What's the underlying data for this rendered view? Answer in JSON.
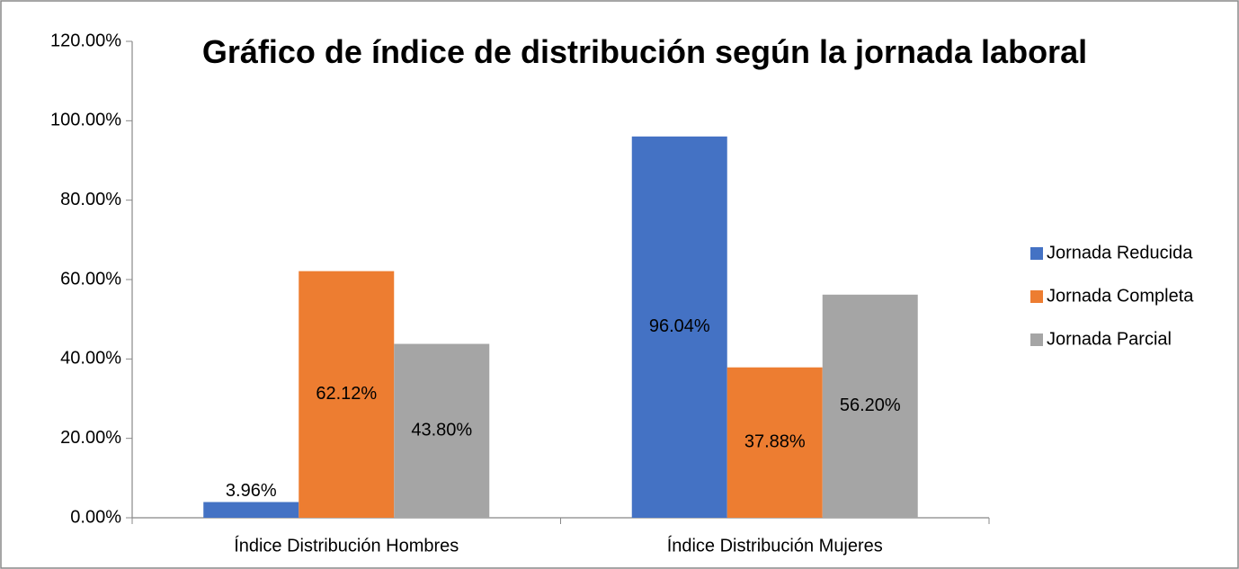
{
  "chart_data": {
    "type": "bar",
    "title": "Gráfico de índice de distribución según la jornada laboral",
    "categories": [
      "Índice Distribución Hombres",
      "Índice Distribución Mujeres"
    ],
    "series": [
      {
        "name": "Jornada Reducida",
        "color": "#4472c4",
        "values": [
          3.96,
          96.04
        ],
        "value_labels": [
          "3.96%",
          "96.04%"
        ]
      },
      {
        "name": "Jornada Completa",
        "color": "#ed7d31",
        "values": [
          62.12,
          37.88
        ],
        "value_labels": [
          "62.12%",
          "37.88%"
        ]
      },
      {
        "name": "Jornada Parcial",
        "color": "#a5a5a5",
        "values": [
          43.8,
          56.2
        ],
        "value_labels": [
          "43.80%",
          "56.20%"
        ]
      }
    ],
    "ylim": [
      0,
      120
    ],
    "yticks": [
      {
        "value": 0,
        "label": "0.00%"
      },
      {
        "value": 20,
        "label": "20.00%"
      },
      {
        "value": 40,
        "label": "40.00%"
      },
      {
        "value": 60,
        "label": "60.00%"
      },
      {
        "value": 80,
        "label": "80.00%"
      },
      {
        "value": 100,
        "label": "100.00%"
      },
      {
        "value": 120,
        "label": "120.00%"
      }
    ],
    "grid": false,
    "legend": "right"
  }
}
